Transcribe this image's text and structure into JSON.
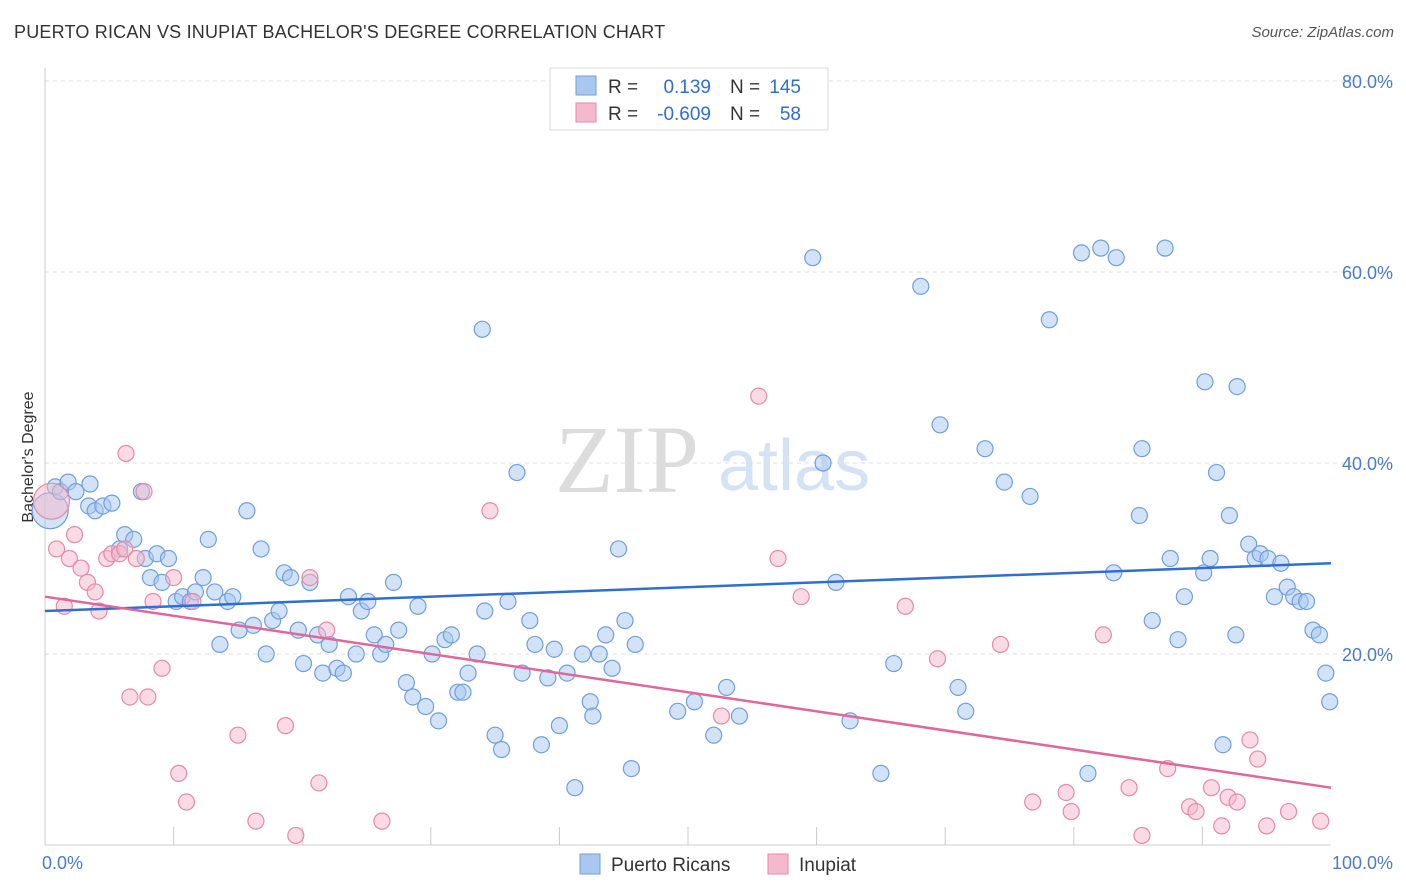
{
  "header": {
    "title": "PUERTO RICAN VS INUPIAT BACHELOR'S DEGREE CORRELATION CHART",
    "source": "Source: ZipAtlas.com"
  },
  "watermark": {
    "zip": "ZIP",
    "atlas": "atlas"
  },
  "legend": {
    "r_label": "R =",
    "n_label": "N =",
    "rows": [
      {
        "r": "0.139",
        "n": "145",
        "color": "#a8c8f0"
      },
      {
        "r": "-0.609",
        "n": "58",
        "color": "#f5b8cc"
      }
    ]
  },
  "chart_data": {
    "type": "scatter",
    "title": "PUERTO RICAN VS INUPIAT BACHELOR'S DEGREE CORRELATION CHART",
    "xlabel": "",
    "ylabel": "Bachelor's Degree",
    "xlim": [
      0,
      100
    ],
    "ylim": [
      0,
      80
    ],
    "x_tick_labels": [
      "0.0%",
      "100.0%"
    ],
    "y_ticks": [
      20,
      40,
      60,
      80
    ],
    "y_tick_labels": [
      "20.0%",
      "40.0%",
      "60.0%",
      "80.0%"
    ],
    "grid": "horizontal dashed",
    "legend_position": "top-center",
    "series": [
      {
        "name": "Puerto Ricans",
        "color": "#a8c8f0",
        "stroke": "#6f9fdc",
        "line_color": "#2e6fd1",
        "R": 0.139,
        "N": 145,
        "trend": [
          [
            0,
            24.5
          ],
          [
            100,
            29.5
          ]
        ],
        "points": [
          [
            0.4,
            35.0
          ],
          [
            0.8,
            37.5
          ],
          [
            1.2,
            37.0
          ],
          [
            1.8,
            38.0
          ],
          [
            2.4,
            37.0
          ],
          [
            3.4,
            35.5
          ],
          [
            3.5,
            37.8
          ],
          [
            3.9,
            35.0
          ],
          [
            4.5,
            35.5
          ],
          [
            5.2,
            35.8
          ],
          [
            5.8,
            31.0
          ],
          [
            6.2,
            32.5
          ],
          [
            6.9,
            32.0
          ],
          [
            7.5,
            37.0
          ],
          [
            7.8,
            30.0
          ],
          [
            8.2,
            28.0
          ],
          [
            8.7,
            30.5
          ],
          [
            9.1,
            27.5
          ],
          [
            9.6,
            30.0
          ],
          [
            10.2,
            25.5
          ],
          [
            10.7,
            26.0
          ],
          [
            11.3,
            25.5
          ],
          [
            11.7,
            26.5
          ],
          [
            12.3,
            28.0
          ],
          [
            12.7,
            32.0
          ],
          [
            13.2,
            26.5
          ],
          [
            13.6,
            21.0
          ],
          [
            14.2,
            25.5
          ],
          [
            14.6,
            26.0
          ],
          [
            15.1,
            22.5
          ],
          [
            15.7,
            35.0
          ],
          [
            16.2,
            23.0
          ],
          [
            16.8,
            31.0
          ],
          [
            17.2,
            20.0
          ],
          [
            17.7,
            23.5
          ],
          [
            18.2,
            24.5
          ],
          [
            18.6,
            28.5
          ],
          [
            19.1,
            28.0
          ],
          [
            19.7,
            22.5
          ],
          [
            20.1,
            19.0
          ],
          [
            20.6,
            27.5
          ],
          [
            21.2,
            22.0
          ],
          [
            21.6,
            18.0
          ],
          [
            22.1,
            21.0
          ],
          [
            22.7,
            18.5
          ],
          [
            23.2,
            18.0
          ],
          [
            23.6,
            26.0
          ],
          [
            24.2,
            20.0
          ],
          [
            24.6,
            24.5
          ],
          [
            25.1,
            25.5
          ],
          [
            25.6,
            22.0
          ],
          [
            26.1,
            20.0
          ],
          [
            26.5,
            21.0
          ],
          [
            27.1,
            27.5
          ],
          [
            27.5,
            22.5
          ],
          [
            28.1,
            17.0
          ],
          [
            28.6,
            15.5
          ],
          [
            29.0,
            25.0
          ],
          [
            29.6,
            14.5
          ],
          [
            30.1,
            20.0
          ],
          [
            30.6,
            13.0
          ],
          [
            31.1,
            21.5
          ],
          [
            31.6,
            22.0
          ],
          [
            32.1,
            16.0
          ],
          [
            32.5,
            16.0
          ],
          [
            32.9,
            18.0
          ],
          [
            33.6,
            20.0
          ],
          [
            34.0,
            54.0
          ],
          [
            34.2,
            24.5
          ],
          [
            35.0,
            11.5
          ],
          [
            35.5,
            10.0
          ],
          [
            36.0,
            25.5
          ],
          [
            36.7,
            39.0
          ],
          [
            37.1,
            18.0
          ],
          [
            37.7,
            23.5
          ],
          [
            38.1,
            21.0
          ],
          [
            38.6,
            10.5
          ],
          [
            39.1,
            17.5
          ],
          [
            39.6,
            20.5
          ],
          [
            40.0,
            12.5
          ],
          [
            40.6,
            18.0
          ],
          [
            41.2,
            6.0
          ],
          [
            41.8,
            20.0
          ],
          [
            42.4,
            15.0
          ],
          [
            42.6,
            13.5
          ],
          [
            43.1,
            20.0
          ],
          [
            43.6,
            22.0
          ],
          [
            44.1,
            18.5
          ],
          [
            44.6,
            31.0
          ],
          [
            45.1,
            23.5
          ],
          [
            45.6,
            8.0
          ],
          [
            45.9,
            21.0
          ],
          [
            49.2,
            14.0
          ],
          [
            50.5,
            15.0
          ],
          [
            52.0,
            11.5
          ],
          [
            53.0,
            16.5
          ],
          [
            54.0,
            13.5
          ],
          [
            59.7,
            61.5
          ],
          [
            60.5,
            40.0
          ],
          [
            61.5,
            27.5
          ],
          [
            62.6,
            13.0
          ],
          [
            65.0,
            7.5
          ],
          [
            66.0,
            19.0
          ],
          [
            68.1,
            58.5
          ],
          [
            69.6,
            44.0
          ],
          [
            71.0,
            16.5
          ],
          [
            71.6,
            14.0
          ],
          [
            73.1,
            41.5
          ],
          [
            74.6,
            38.0
          ],
          [
            76.6,
            36.5
          ],
          [
            78.1,
            55.0
          ],
          [
            80.6,
            62.0
          ],
          [
            81.1,
            7.5
          ],
          [
            82.1,
            62.5
          ],
          [
            83.1,
            28.5
          ],
          [
            83.3,
            61.5
          ],
          [
            85.1,
            34.5
          ],
          [
            85.3,
            41.5
          ],
          [
            86.1,
            23.5
          ],
          [
            87.1,
            62.5
          ],
          [
            87.5,
            30.0
          ],
          [
            88.1,
            21.5
          ],
          [
            88.6,
            26.0
          ],
          [
            90.1,
            28.5
          ],
          [
            90.2,
            48.5
          ],
          [
            90.6,
            30.0
          ],
          [
            91.1,
            39.0
          ],
          [
            91.6,
            10.5
          ],
          [
            92.1,
            34.5
          ],
          [
            92.6,
            22.0
          ],
          [
            92.7,
            48.0
          ],
          [
            93.6,
            31.5
          ],
          [
            94.1,
            30.0
          ],
          [
            94.5,
            30.5
          ],
          [
            95.1,
            30.0
          ],
          [
            95.6,
            26.0
          ],
          [
            96.1,
            29.5
          ],
          [
            96.6,
            27.0
          ],
          [
            97.1,
            26.0
          ],
          [
            97.6,
            25.5
          ],
          [
            98.1,
            25.5
          ],
          [
            98.6,
            22.5
          ],
          [
            99.1,
            22.0
          ],
          [
            99.6,
            18.0
          ],
          [
            99.9,
            15.0
          ]
        ]
      },
      {
        "name": "Inupiat",
        "color": "#f5b8cc",
        "stroke": "#e58aa7",
        "line_color": "#e0679a",
        "R": -0.609,
        "N": 58,
        "trend": [
          [
            0,
            26.0
          ],
          [
            100,
            6.0
          ]
        ],
        "points": [
          [
            0.5,
            36.0
          ],
          [
            0.9,
            31.0
          ],
          [
            1.5,
            25.0
          ],
          [
            1.9,
            30.0
          ],
          [
            2.3,
            32.5
          ],
          [
            2.8,
            29.0
          ],
          [
            3.3,
            27.5
          ],
          [
            3.9,
            26.5
          ],
          [
            4.2,
            24.5
          ],
          [
            4.8,
            30.0
          ],
          [
            5.2,
            30.5
          ],
          [
            5.8,
            30.5
          ],
          [
            6.2,
            31.0
          ],
          [
            6.3,
            41.0
          ],
          [
            6.6,
            15.5
          ],
          [
            7.1,
            30.0
          ],
          [
            7.7,
            37.0
          ],
          [
            8.0,
            15.5
          ],
          [
            8.4,
            25.5
          ],
          [
            9.1,
            18.5
          ],
          [
            10.0,
            28.0
          ],
          [
            10.4,
            7.5
          ],
          [
            11.0,
            4.5
          ],
          [
            11.5,
            25.5
          ],
          [
            15.0,
            11.5
          ],
          [
            16.4,
            2.5
          ],
          [
            18.7,
            12.5
          ],
          [
            19.5,
            1.0
          ],
          [
            20.6,
            28.0
          ],
          [
            21.3,
            6.5
          ],
          [
            21.9,
            22.5
          ],
          [
            26.2,
            2.5
          ],
          [
            34.6,
            35.0
          ],
          [
            52.6,
            13.5
          ],
          [
            55.5,
            47.0
          ],
          [
            57.0,
            30.0
          ],
          [
            58.8,
            26.0
          ],
          [
            66.9,
            25.0
          ],
          [
            69.4,
            19.5
          ],
          [
            74.3,
            21.0
          ],
          [
            76.8,
            4.5
          ],
          [
            79.4,
            5.5
          ],
          [
            79.8,
            3.5
          ],
          [
            82.3,
            22.0
          ],
          [
            84.3,
            6.0
          ],
          [
            85.3,
            1.0
          ],
          [
            87.3,
            8.0
          ],
          [
            89.0,
            4.0
          ],
          [
            89.5,
            3.5
          ],
          [
            90.7,
            6.0
          ],
          [
            91.5,
            2.0
          ],
          [
            92.0,
            5.0
          ],
          [
            92.7,
            4.5
          ],
          [
            93.7,
            11.0
          ],
          [
            94.3,
            9.0
          ],
          [
            95.0,
            2.0
          ],
          [
            96.7,
            3.5
          ],
          [
            99.2,
            2.5
          ]
        ]
      }
    ]
  }
}
